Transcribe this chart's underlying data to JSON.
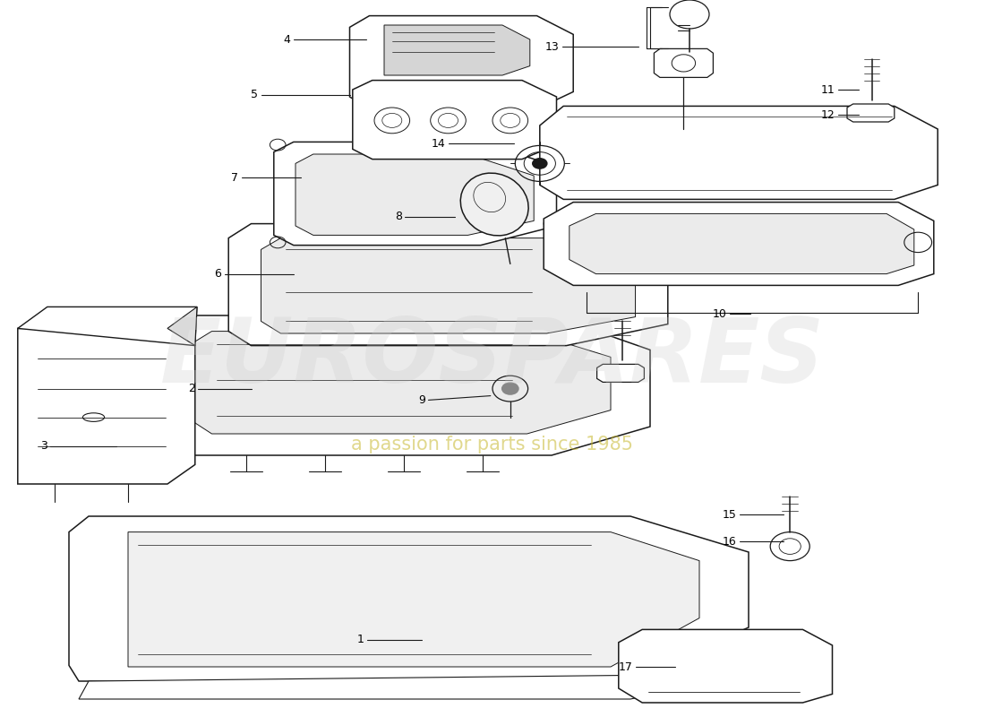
{
  "bg": "#ffffff",
  "lc": "#1a1a1a",
  "wm1": "EUROSPARES",
  "wm2": "a passion for parts since 1985",
  "wm1_color": "#cccccc",
  "wm2_color": "#c8b830",
  "label_fs": 9
}
